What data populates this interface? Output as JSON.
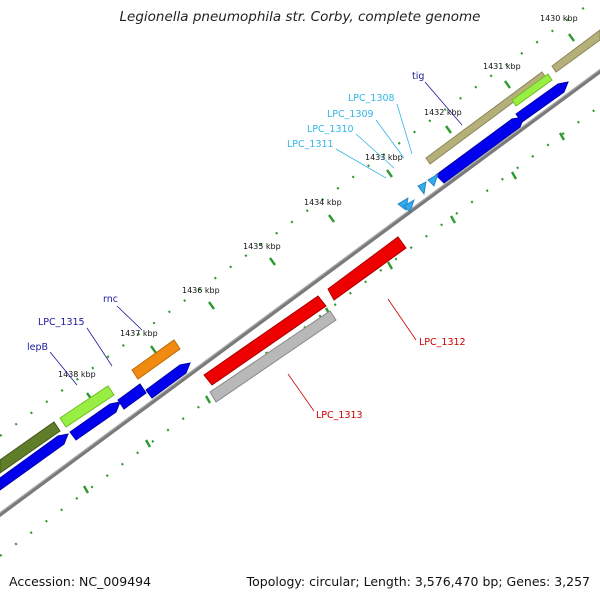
{
  "title": "Legionella pneumophila str. Corby, complete genome",
  "accession": "Accession: NC_009494",
  "summary": "Topology: circular; Length: 3,576,470 bp; Genes: 3,257",
  "ticks": [
    "1430 kbp",
    "1431 kbp",
    "1432 kbp",
    "1433 kbp",
    "1434 kbp",
    "1435 kbp",
    "1436 kbp",
    "1437 kbp",
    "1438 kbp"
  ],
  "gene_labels": [
    "tig",
    "LPC_1308",
    "LPC_1309",
    "LPC_1310",
    "LPC_1311",
    "LPC_1312",
    "LPC_1313",
    "rnc",
    "LPC_1315",
    "lepB"
  ],
  "colors": {
    "cds": "#0000ee",
    "olive": "#b5b07a",
    "dark_olive": "#607d2a",
    "lime": "#99ee44",
    "orange": "#f08a10",
    "red": "#ee0000",
    "gray": "#b8b8b8",
    "trna": "#33aaee",
    "tick": "#2e9a2e",
    "label_cyan": "#33b5e5",
    "label_blue": "#1a1aa0",
    "label_red": "#cc0000"
  }
}
